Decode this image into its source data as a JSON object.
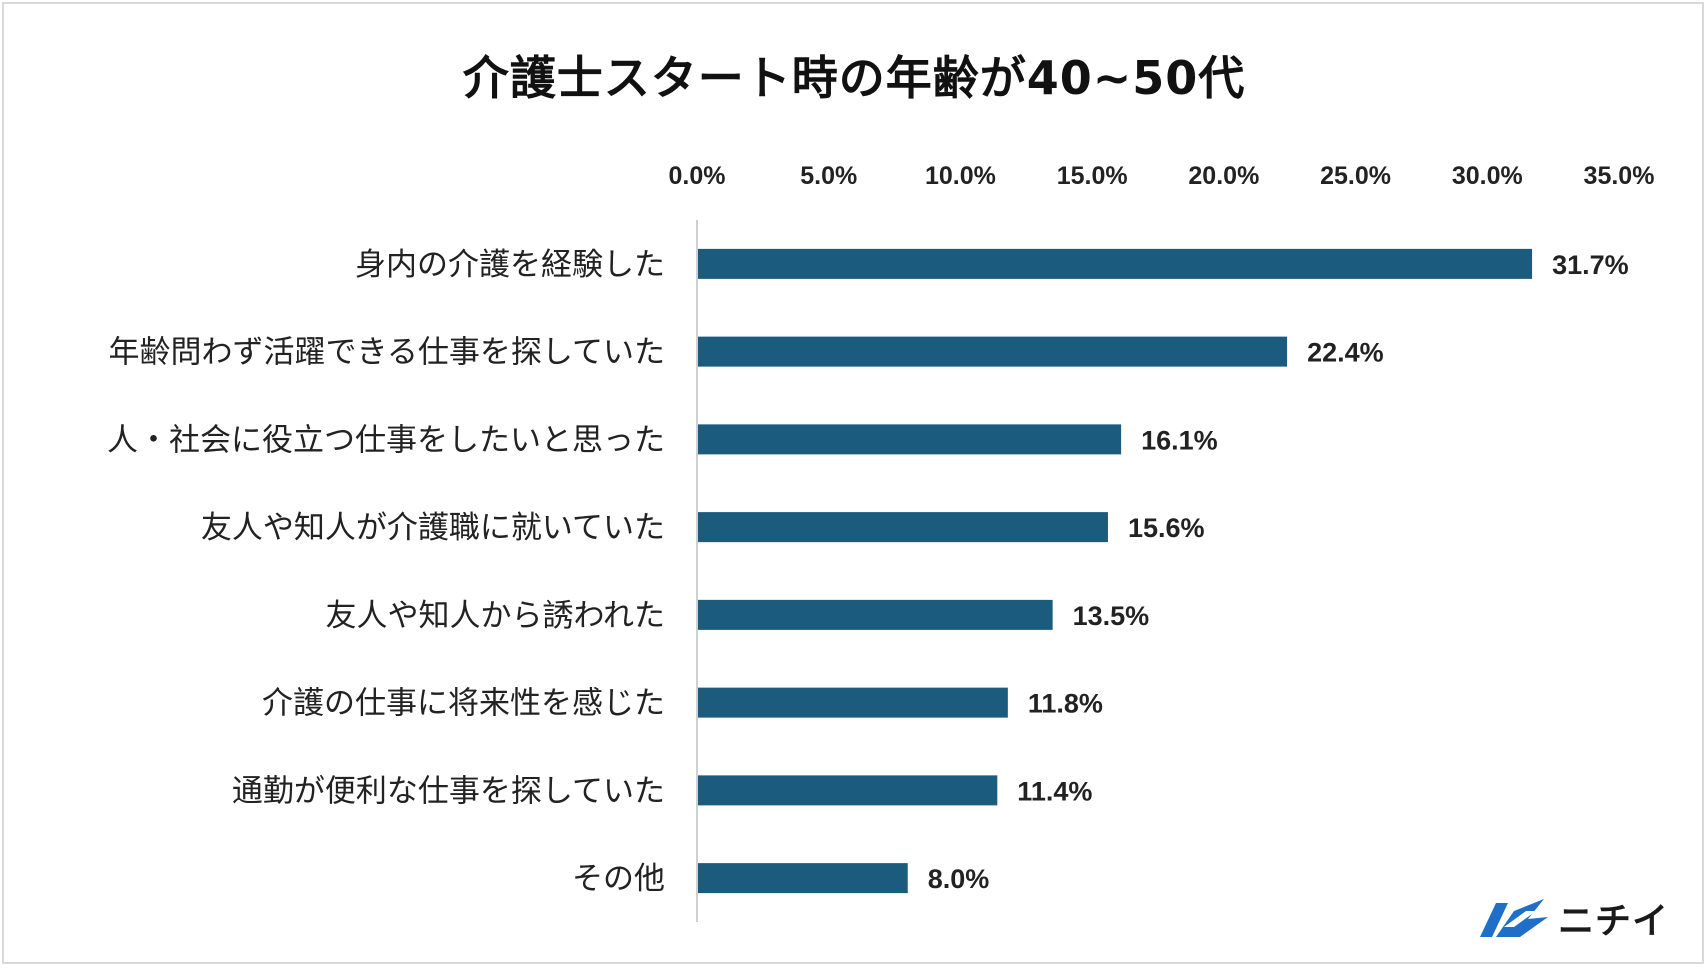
{
  "chart_data": {
    "type": "bar",
    "orientation": "horizontal",
    "title": "介護士スタート時の年齢が40~50代",
    "categories": [
      "身内の介護を経験した",
      "年齢問わず活躍できる仕事を探していた",
      "人・社会に役立つ仕事をしたいと思った",
      "友人や知人が介護職に就いていた",
      "友人や知人から誘われた",
      "介護の仕事に将来性を感じた",
      "通勤が便利な仕事を探していた",
      "その他"
    ],
    "values": [
      31.7,
      22.4,
      16.1,
      15.6,
      13.5,
      11.8,
      11.4,
      8.0
    ],
    "value_labels": [
      "31.7%",
      "22.4%",
      "16.1%",
      "15.6%",
      "13.5%",
      "11.8%",
      "11.4%",
      "8.0%"
    ],
    "xlim": [
      0,
      35
    ],
    "x_ticks": [
      0,
      5,
      10,
      15,
      20,
      25,
      30,
      35
    ],
    "x_tick_labels": [
      "0.0%",
      "5.0%",
      "10.0%",
      "15.0%",
      "20.0%",
      "25.0%",
      "30.0%",
      "35.0%"
    ],
    "x_axis_position": "top",
    "grid": false,
    "bar_color": "#1a5b7e",
    "axis_line_color": "#d0d0d0"
  },
  "logo": {
    "text": "ニチイ",
    "icon": "nichii-logo-mark",
    "color": "#1f6fc9"
  }
}
